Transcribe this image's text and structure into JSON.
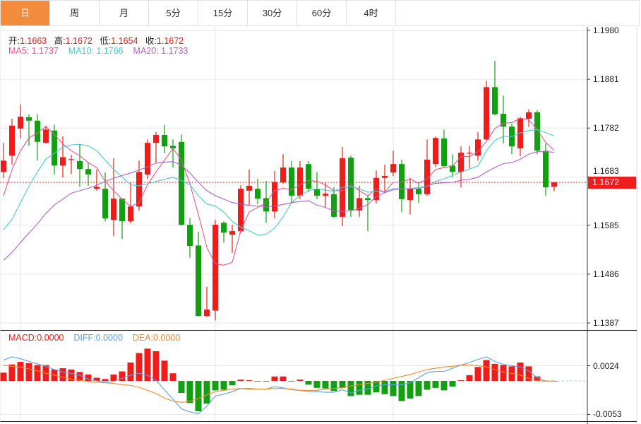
{
  "tabs": [
    {
      "label": "日",
      "active": true
    },
    {
      "label": "周",
      "active": false
    },
    {
      "label": "月",
      "active": false
    },
    {
      "label": "5分",
      "active": false
    },
    {
      "label": "15分",
      "active": false
    },
    {
      "label": "30分",
      "active": false
    },
    {
      "label": "60分",
      "active": false
    },
    {
      "label": "4时",
      "active": false
    }
  ],
  "ohlc_legend": {
    "open_label": "开:",
    "open": "1.1663",
    "high_label": "高:",
    "high": "1.1672",
    "low_label": "低:",
    "low": "1.1654",
    "close_label": "收:",
    "close": "1.1672"
  },
  "ma_legend": {
    "ma5": "MA5: 1.1737",
    "ma10": "MA10: 1.1766",
    "ma20": "MA20: 1.1733"
  },
  "macd_legend": {
    "macd": "MACD:0.0000",
    "diff": "DIFF:0.0000",
    "dea": "DEA:0.0000"
  },
  "current_price": "1.1672",
  "colors": {
    "up": "#ee1c1c",
    "down": "#12a012",
    "accent": "#f28c3c",
    "ma5": "#e85590",
    "ma10": "#4fc6d2",
    "ma20": "#b062c4",
    "diff": "#5aa2e6",
    "dea": "#f08a30"
  },
  "chart_data": [
    {
      "type": "candlestick",
      "y_ticks": [
        "1.1980",
        "1.1881",
        "1.1782",
        "1.1683",
        "1.1585",
        "1.1486",
        "1.1387"
      ],
      "ylim": [
        1.1387,
        1.198
      ],
      "grid": true,
      "ohlc": [
        [
          1.1693,
          1.1752,
          1.1681,
          1.1716
        ],
        [
          1.1726,
          1.1801,
          1.1708,
          1.1787
        ],
        [
          1.1781,
          1.183,
          1.1761,
          1.1805
        ],
        [
          1.1804,
          1.181,
          1.1746,
          1.1797
        ],
        [
          1.1797,
          1.181,
          1.1716,
          1.1754
        ],
        [
          1.1752,
          1.1787,
          1.1751,
          1.1779
        ],
        [
          1.1777,
          1.1789,
          1.1688,
          1.1706
        ],
        [
          1.1706,
          1.1765,
          1.1682,
          1.1723
        ],
        [
          1.1718,
          1.1728,
          1.1689,
          1.1719
        ],
        [
          1.1715,
          1.1749,
          1.1663,
          1.1699
        ],
        [
          1.1699,
          1.1713,
          1.1665,
          1.1688
        ],
        [
          1.1659,
          1.1698,
          1.1655,
          1.1663
        ],
        [
          1.1659,
          1.1692,
          1.1593,
          1.1599
        ],
        [
          1.1596,
          1.1721,
          1.1563,
          1.1639
        ],
        [
          1.1639,
          1.164,
          1.1557,
          1.1593
        ],
        [
          1.1593,
          1.1672,
          1.1589,
          1.1623
        ],
        [
          1.1623,
          1.1716,
          1.1615,
          1.1693
        ],
        [
          1.1688,
          1.1759,
          1.1679,
          1.1752
        ],
        [
          1.1752,
          1.1774,
          1.1712,
          1.1768
        ],
        [
          1.1768,
          1.1788,
          1.1731,
          1.1745
        ],
        [
          1.1746,
          1.1759,
          1.1702,
          1.1741
        ],
        [
          1.1754,
          1.1769,
          1.1584,
          1.1586
        ],
        [
          1.1586,
          1.1599,
          1.1519,
          1.1543
        ],
        [
          1.1544,
          1.1572,
          1.14,
          1.1401
        ],
        [
          1.1401,
          1.146,
          1.1399,
          1.1414
        ],
        [
          1.1412,
          1.1596,
          1.1392,
          1.1586
        ],
        [
          1.159,
          1.1593,
          1.155,
          1.157
        ],
        [
          1.1566,
          1.1586,
          1.1529,
          1.1573
        ],
        [
          1.1573,
          1.1666,
          1.1569,
          1.1659
        ],
        [
          1.1655,
          1.1698,
          1.1626,
          1.1665
        ],
        [
          1.1659,
          1.1679,
          1.1628,
          1.1639
        ],
        [
          1.164,
          1.1675,
          1.159,
          1.1613
        ],
        [
          1.1613,
          1.1695,
          1.1599,
          1.1673
        ],
        [
          1.1672,
          1.1729,
          1.1669,
          1.1702
        ],
        [
          1.1702,
          1.1715,
          1.163,
          1.1645
        ],
        [
          1.1645,
          1.1715,
          1.1638,
          1.1702
        ],
        [
          1.1709,
          1.1715,
          1.1652,
          1.1659
        ],
        [
          1.1659,
          1.1693,
          1.1638,
          1.1645
        ],
        [
          1.1645,
          1.1672,
          1.1622,
          1.1649
        ],
        [
          1.1648,
          1.1662,
          1.16,
          1.1602
        ],
        [
          1.1602,
          1.1744,
          1.1583,
          1.1721
        ],
        [
          1.1722,
          1.1726,
          1.1602,
          1.1616
        ],
        [
          1.1615,
          1.1665,
          1.1602,
          1.164
        ],
        [
          1.164,
          1.1645,
          1.1573,
          1.1636
        ],
        [
          1.1636,
          1.1696,
          1.1629,
          1.1681
        ],
        [
          1.1681,
          1.1708,
          1.165,
          1.1685
        ],
        [
          1.1692,
          1.1736,
          1.1685,
          1.1709
        ],
        [
          1.1709,
          1.1718,
          1.1612,
          1.1638
        ],
        [
          1.1636,
          1.1681,
          1.1607,
          1.1659
        ],
        [
          1.1659,
          1.1669,
          1.163,
          1.1648
        ],
        [
          1.1648,
          1.1759,
          1.1645,
          1.1718
        ],
        [
          1.1709,
          1.1765,
          1.1703,
          1.1762
        ],
        [
          1.1761,
          1.1779,
          1.1702,
          1.1705
        ],
        [
          1.1706,
          1.1729,
          1.1682,
          1.1693
        ],
        [
          1.1693,
          1.1745,
          1.1662,
          1.1732
        ],
        [
          1.1731,
          1.1746,
          1.1701,
          1.1732
        ],
        [
          1.1726,
          1.1774,
          1.1716,
          1.1759
        ],
        [
          1.1759,
          1.1878,
          1.1758,
          1.1865
        ],
        [
          1.1865,
          1.1918,
          1.1808,
          1.181
        ],
        [
          1.1811,
          1.1848,
          1.1751,
          1.1785
        ],
        [
          1.1785,
          1.1791,
          1.1729,
          1.1745
        ],
        [
          1.1741,
          1.1805,
          1.1725,
          1.1802
        ],
        [
          1.1801,
          1.182,
          1.1784,
          1.1814
        ],
        [
          1.1814,
          1.1818,
          1.1729,
          1.1736
        ],
        [
          1.1736,
          1.1751,
          1.1645,
          1.1662
        ],
        [
          1.1663,
          1.1672,
          1.1654,
          1.1672
        ]
      ],
      "series": [
        {
          "name": "MA5",
          "values": [
            1.1645,
            1.1698,
            1.1736,
            1.1762,
            1.1772,
            1.1785,
            1.1769,
            1.175,
            1.1736,
            1.1726,
            1.1712,
            1.1702,
            1.1674,
            1.1655,
            1.1638,
            1.1623,
            1.1631,
            1.1667,
            1.1693,
            1.1717,
            1.1741,
            1.1717,
            1.1669,
            1.1607,
            1.154,
            1.1507,
            1.1504,
            1.151,
            1.1574,
            1.1612,
            1.1621,
            1.1631,
            1.1655,
            1.166,
            1.1657,
            1.1667,
            1.1676,
            1.1674,
            1.1667,
            1.1655,
            1.1655,
            1.1667,
            1.1655,
            1.1645,
            1.1659,
            1.1652,
            1.1672,
            1.1672,
            1.1679,
            1.167,
            1.1679,
            1.1698,
            1.1702,
            1.1705,
            1.1724,
            1.1724,
            1.1734,
            1.1755,
            1.1781,
            1.1792,
            1.1793,
            1.1802,
            1.1799,
            1.1779,
            1.1753,
            1.1737
          ]
        },
        {
          "name": "MA10",
          "values": [
            1.1576,
            1.1597,
            1.1631,
            1.1664,
            1.1693,
            1.1719,
            1.1731,
            1.1743,
            1.1748,
            1.1749,
            1.1746,
            1.1736,
            1.1717,
            1.1698,
            1.1683,
            1.1667,
            1.1665,
            1.1669,
            1.1674,
            1.1678,
            1.1682,
            1.1676,
            1.1667,
            1.1645,
            1.1628,
            1.1624,
            1.1612,
            1.1593,
            1.1581,
            1.1574,
            1.1565,
            1.1567,
            1.1579,
            1.1602,
            1.1631,
            1.1645,
            1.1655,
            1.1659,
            1.1656,
            1.1654,
            1.1662,
            1.1663,
            1.1659,
            1.1652,
            1.1654,
            1.1652,
            1.1659,
            1.1659,
            1.1659,
            1.1662,
            1.1664,
            1.1674,
            1.1679,
            1.1686,
            1.1693,
            1.1699,
            1.1705,
            1.1736,
            1.1757,
            1.1765,
            1.1765,
            1.1772,
            1.1777,
            1.1779,
            1.1773,
            1.1766
          ]
        },
        {
          "name": "MA20",
          "values": [
            1.1514,
            1.153,
            1.155,
            1.1569,
            1.1588,
            1.1609,
            1.1626,
            1.1638,
            1.165,
            1.1655,
            1.166,
            1.1666,
            1.1674,
            1.168,
            1.1686,
            1.1691,
            1.1697,
            1.1703,
            1.1711,
            1.1713,
            1.1714,
            1.1707,
            1.1691,
            1.1672,
            1.1655,
            1.1645,
            1.1638,
            1.1631,
            1.1628,
            1.1625,
            1.1624,
            1.1622,
            1.1624,
            1.1627,
            1.1631,
            1.1633,
            1.1635,
            1.1626,
            1.1621,
            1.1614,
            1.1613,
            1.1614,
            1.1619,
            1.1627,
            1.1643,
            1.1651,
            1.1657,
            1.1659,
            1.1659,
            1.1659,
            1.1665,
            1.167,
            1.1671,
            1.1672,
            1.1676,
            1.1678,
            1.1682,
            1.1693,
            1.1702,
            1.171,
            1.1712,
            1.1719,
            1.1729,
            1.1734,
            1.1734,
            1.1733
          ]
        }
      ]
    },
    {
      "type": "bar",
      "y_ticks": [
        "0.0024",
        "-0.0053"
      ],
      "grid": true,
      "macd": [
        0.0013,
        0.0026,
        0.003,
        0.0028,
        0.0025,
        0.0025,
        0.0018,
        0.002,
        0.0018,
        0.0014,
        0.001,
        0.0005,
        0.0003,
        0.001,
        0.0015,
        0.0029,
        0.0044,
        0.0051,
        0.0047,
        0.0032,
        0.0012,
        -0.0019,
        -0.0035,
        -0.0048,
        -0.0036,
        -0.0015,
        -0.0014,
        -0.0007,
        0.0002,
        0.0001,
        -0.0001,
        0.0,
        0.0007,
        0.0007,
        0.0,
        0.0002,
        -0.0006,
        -0.0011,
        -0.0012,
        -0.0016,
        -0.0011,
        -0.0024,
        -0.0022,
        -0.0022,
        -0.0018,
        -0.0021,
        -0.0024,
        -0.0032,
        -0.0028,
        -0.0024,
        -0.0014,
        -0.0011,
        -0.0015,
        -0.0009,
        0.0001,
        0.0009,
        0.0022,
        0.0033,
        0.0027,
        0.0025,
        0.0023,
        0.0029,
        0.0023,
        0.0007,
        0.0,
        0.0
      ],
      "series": [
        {
          "name": "DIFF",
          "values": [
            0.0033,
            0.0038,
            0.0035,
            0.0031,
            0.0027,
            0.0023,
            0.0018,
            0.0014,
            0.0012,
            0.0009,
            0.0003,
            0.0,
            -0.0002,
            -0.0001,
            0.0004,
            0.0009,
            0.0012,
            0.0009,
            0.0001,
            -0.0014,
            -0.0029,
            -0.0044,
            -0.0049,
            -0.0052,
            -0.004,
            -0.0024,
            -0.0021,
            -0.0017,
            -0.0012,
            -0.0012,
            -0.0013,
            -0.0013,
            -0.0009,
            -0.0011,
            -0.0014,
            -0.0015,
            -0.0017,
            -0.0017,
            -0.0018,
            -0.0018,
            -0.0014,
            -0.0019,
            -0.0015,
            -0.0013,
            -0.0008,
            -0.0006,
            -0.0006,
            -0.0006,
            -0.0003,
            0.0005,
            0.0013,
            0.0015,
            0.0015,
            0.002,
            0.0025,
            0.0029,
            0.0034,
            0.0038,
            0.0031,
            0.0026,
            0.0024,
            0.0022,
            0.0016,
            0.0005,
            0.0,
            0.0
          ]
        },
        {
          "name": "DEA",
          "values": [
            0.0025,
            0.0023,
            0.0022,
            0.0019,
            0.0016,
            0.0012,
            0.0009,
            0.0006,
            0.0003,
            0.0001,
            -0.0001,
            -0.0002,
            -0.0003,
            -0.0004,
            -0.0006,
            -0.0007,
            -0.001,
            -0.0015,
            -0.002,
            -0.0027,
            -0.0032,
            -0.0034,
            -0.0032,
            -0.0028,
            -0.0022,
            -0.0017,
            -0.0015,
            -0.0013,
            -0.0012,
            -0.0013,
            -0.0013,
            -0.0013,
            -0.0012,
            -0.0012,
            -0.0013,
            -0.0015,
            -0.0015,
            -0.0015,
            -0.0013,
            -0.0012,
            -0.0011,
            -0.0008,
            -0.0006,
            -0.0004,
            -0.0002,
            0.0001,
            0.0004,
            0.0007,
            0.001,
            0.0014,
            0.0018,
            0.002,
            0.0022,
            0.0023,
            0.0025,
            0.0025,
            0.0024,
            0.0022,
            0.0018,
            0.0014,
            0.0012,
            0.0009,
            0.0004,
            0.0,
            0.0,
            0.0
          ]
        }
      ]
    }
  ]
}
